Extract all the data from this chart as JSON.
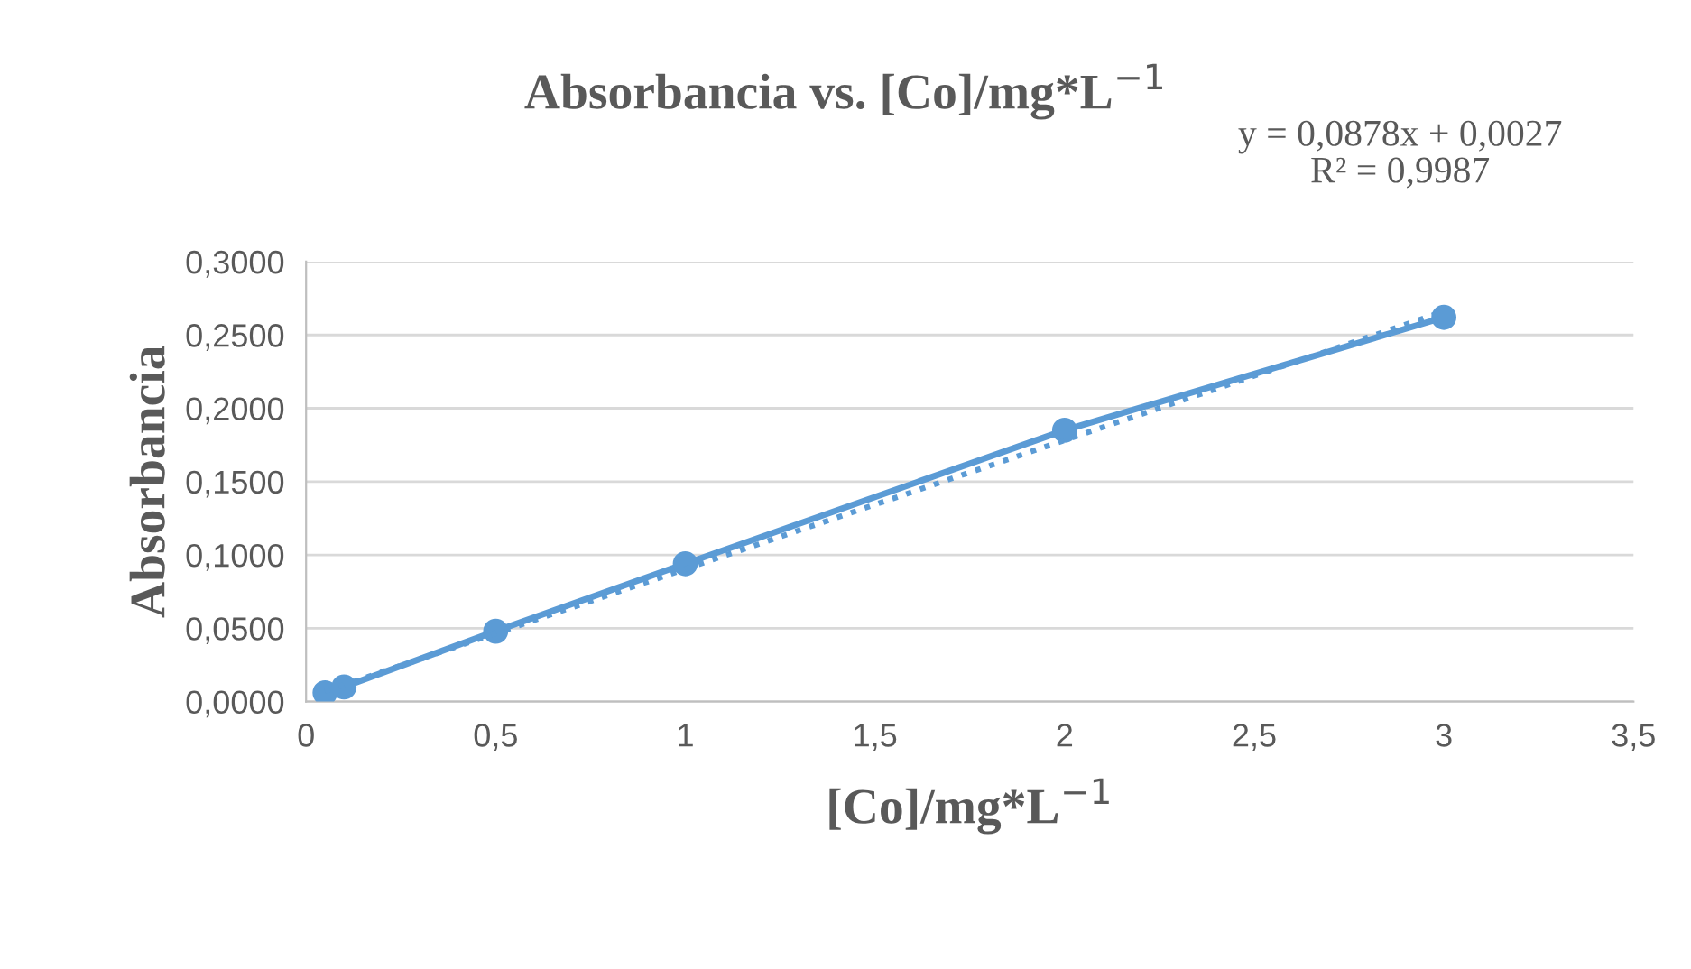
{
  "chart_data": {
    "type": "line",
    "title": "Absorbancia vs. [Co]/mg*L$^{−1}$",
    "xlabel": "[Co]/mg*L$^{−1}$",
    "ylabel": "Absorbancia",
    "annotations": [
      "y = 0,0878x + 0,0027\nR² = 0,9987"
    ],
    "series": [
      {
        "color": "#5b9bd5",
        "marker": "circle",
        "line_style": "solid",
        "x": [
          0.05,
          0.1,
          0.5,
          1,
          2,
          3
        ],
        "values": [
          0.006,
          0.01,
          0.048,
          0.094,
          0.185,
          0.262
        ]
      },
      {
        "color": "#5b9bd5",
        "marker": "none",
        "line_style": "dotted",
        "x": [
          0.05,
          3
        ],
        "values": [
          0.007,
          0.266
        ]
      }
    ],
    "xlim": [
      0,
      3.5
    ],
    "xticks": [
      0,
      {
        "value": 0.5,
        "label": "0,5"
      },
      1,
      {
        "value": 1.5,
        "label": "1,5"
      },
      2,
      {
        "value": 2.5,
        "label": "2,5"
      },
      3,
      {
        "value": 3.5,
        "label": "3,5"
      }
    ],
    "ylim": [
      0,
      0.3
    ],
    "yticks": [
      {
        "value": 0,
        "label": "0,0000"
      },
      {
        "value": 0.05,
        "label": "0,0500"
      },
      {
        "value": 0.1,
        "label": "0,1000"
      },
      {
        "value": 0.15,
        "label": "0,1500"
      },
      {
        "value": 0.2,
        "label": "0,2000"
      },
      {
        "value": 0.25,
        "label": "0,2500"
      },
      {
        "value": 0.3,
        "label": "0,3000"
      }
    ],
    "grid": "y",
    "legend": false
  }
}
